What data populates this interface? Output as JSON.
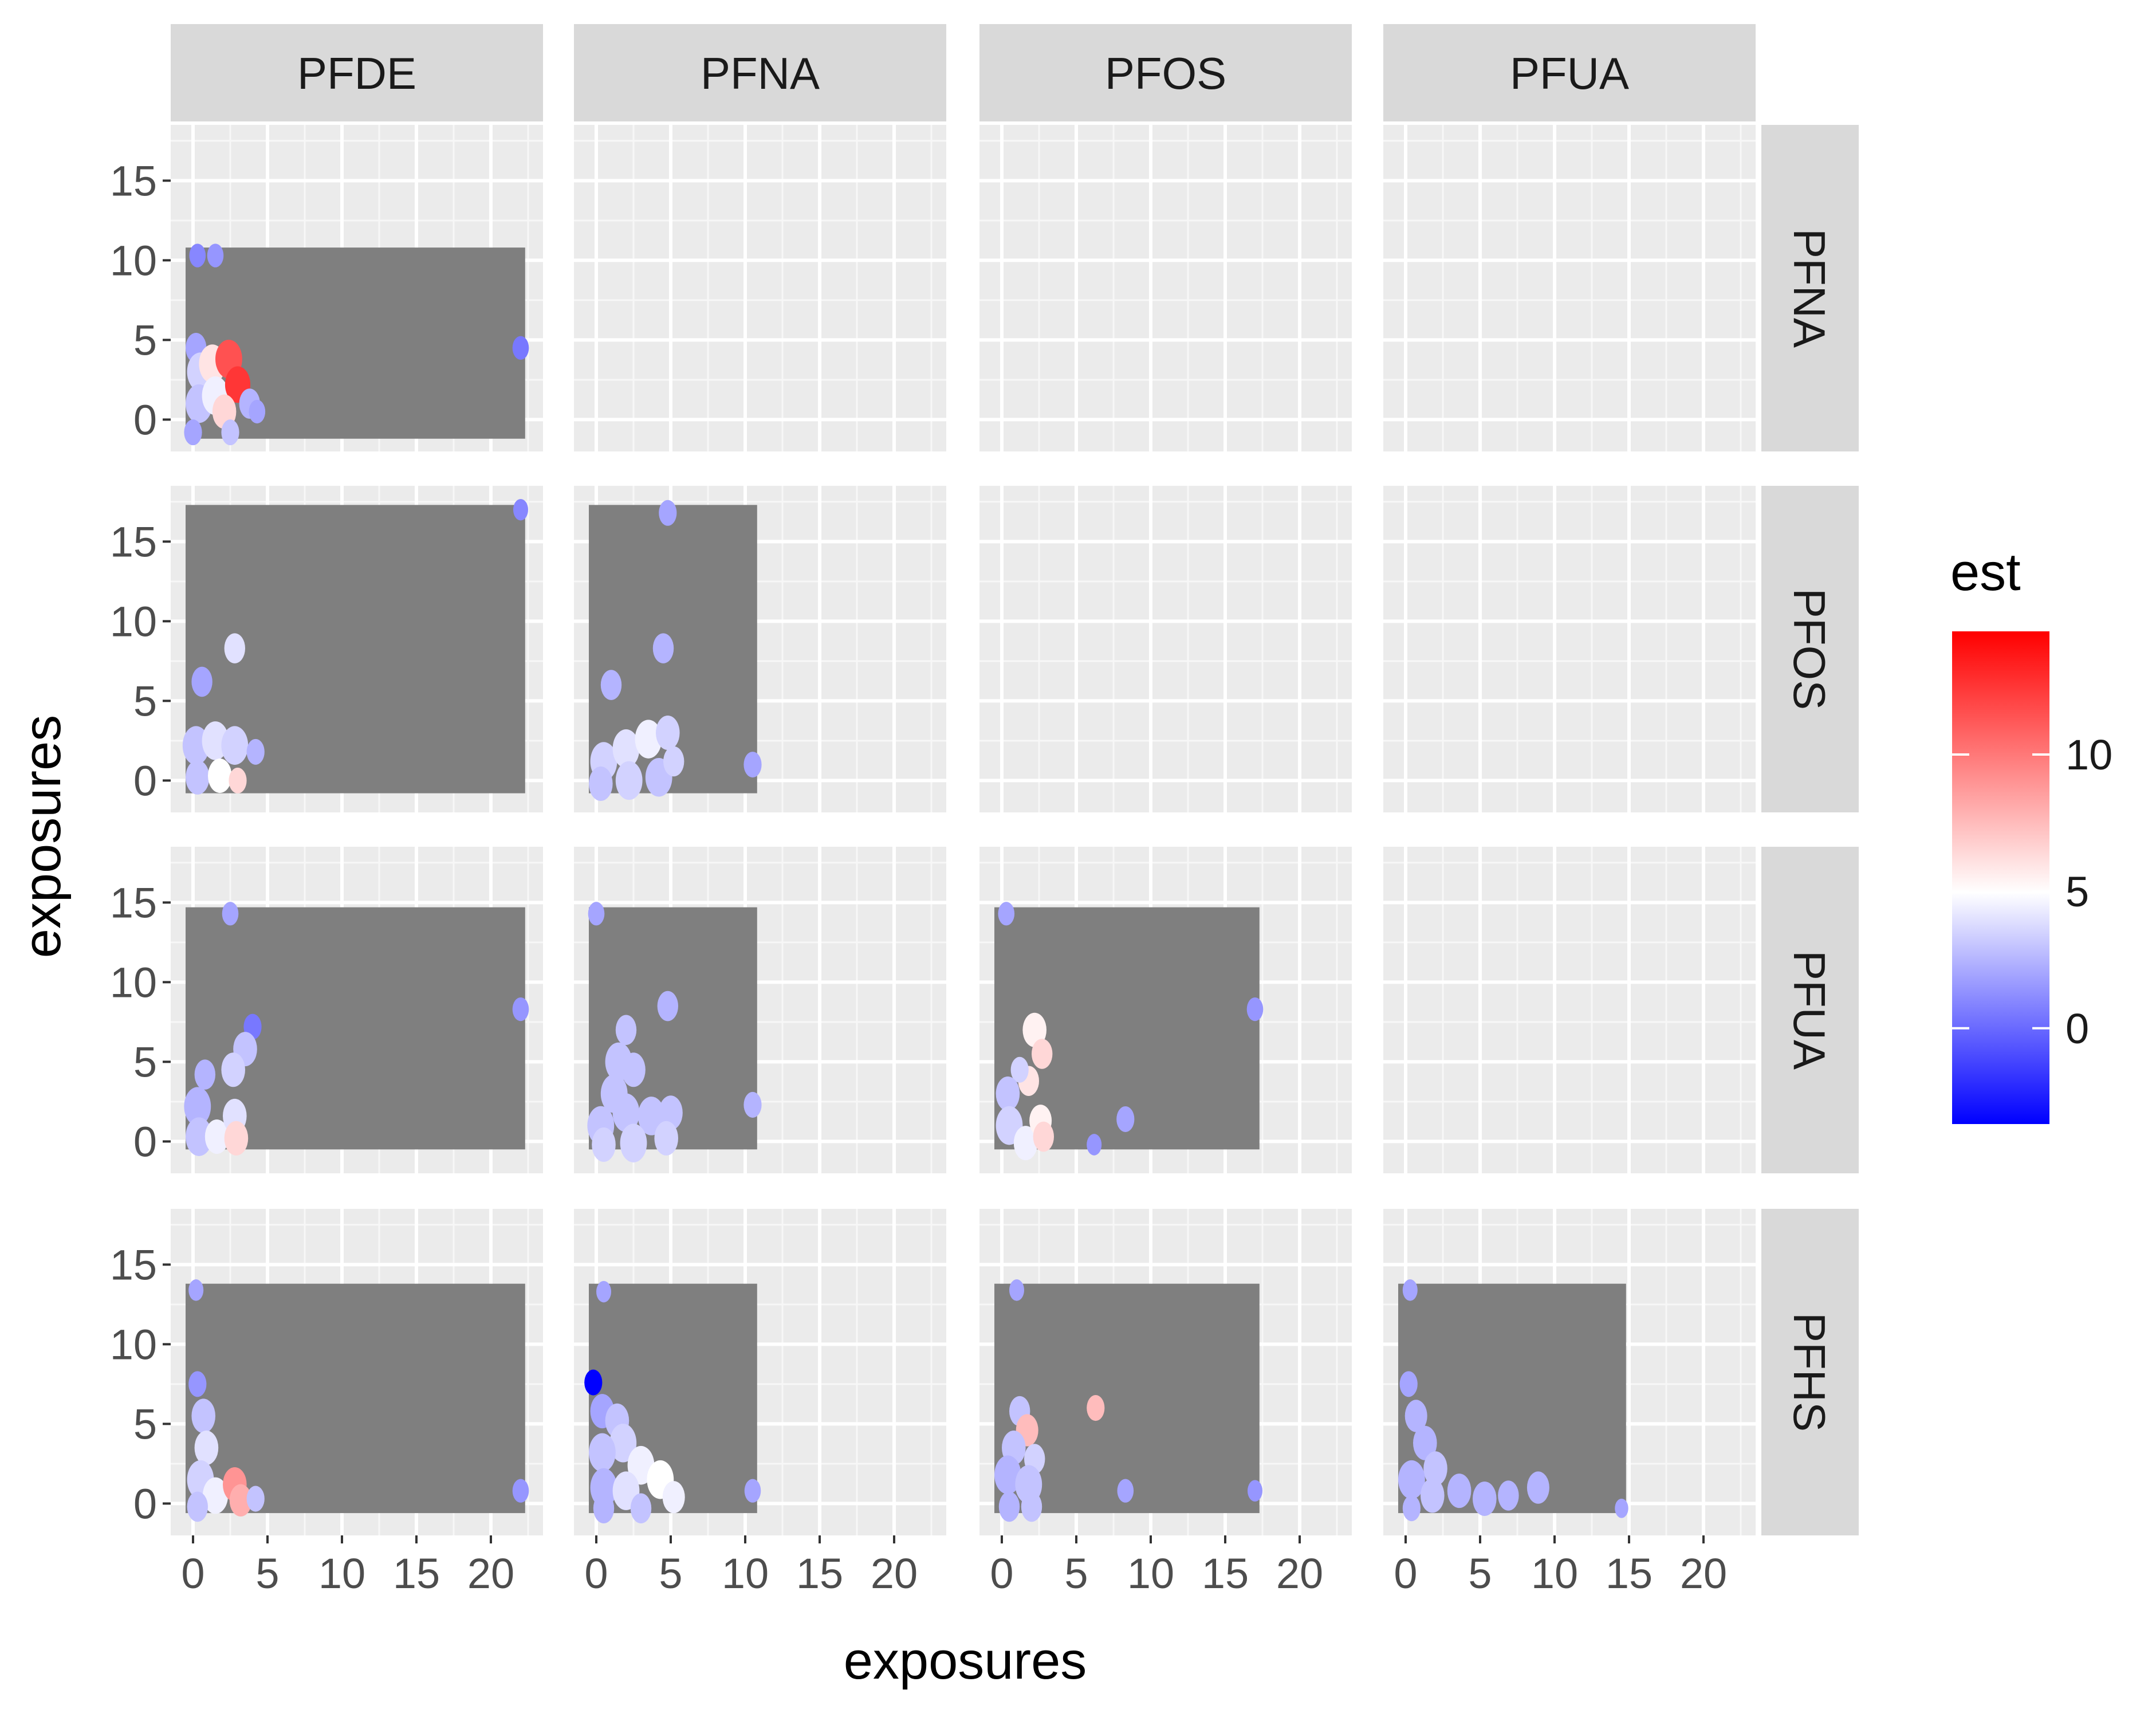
{
  "chart_data": {
    "type": "heatmap",
    "title": "",
    "xlabel": "exposures",
    "ylabel": "exposures",
    "xlim": [
      -1.5,
      23.5
    ],
    "ylim": [
      -2,
      18.5
    ],
    "x_ticks": [
      0,
      5,
      10,
      15,
      20
    ],
    "y_ticks": [
      0,
      5,
      10,
      15
    ],
    "column_labels": [
      "PFDE",
      "PFNA",
      "PFOS",
      "PFUA"
    ],
    "row_labels": [
      "PFNA",
      "PFOS",
      "PFUA",
      "PFHS"
    ],
    "legend": {
      "title": "est",
      "placement": "right",
      "min": -3.5,
      "max": 14.5,
      "ticks": [
        0,
        5,
        10
      ],
      "colors": {
        "low": "#0000ff",
        "mid": "#ffffff",
        "high": "#ff0000"
      },
      "midpoint": 5
    },
    "panel_background": "#ebebeb",
    "na_fill": "#7f7f7f",
    "strip_fill": "#d9d9d9",
    "panels": [
      {
        "col": "PFDE",
        "row": "PFNA",
        "grey_region": {
          "x": [
            -0.5,
            22.3
          ],
          "y": [
            -1.2,
            10.8
          ]
        },
        "patches": [
          {
            "x": 0.3,
            "y": 10.3,
            "r": 0.55,
            "est": 1.0
          },
          {
            "x": 1.5,
            "y": 10.3,
            "r": 0.55,
            "est": 1.5
          },
          {
            "x": 0.2,
            "y": 4.5,
            "r": 0.7,
            "est": 2.0
          },
          {
            "x": 0.5,
            "y": 3.0,
            "r": 0.9,
            "est": 3.5
          },
          {
            "x": 0.4,
            "y": 1.0,
            "r": 0.9,
            "est": 3.0
          },
          {
            "x": 0.0,
            "y": -0.8,
            "r": 0.6,
            "est": 2.0
          },
          {
            "x": 1.3,
            "y": 3.5,
            "r": 0.9,
            "est": 6.0
          },
          {
            "x": 1.5,
            "y": 1.5,
            "r": 0.9,
            "est": 4.5
          },
          {
            "x": 2.4,
            "y": 3.8,
            "r": 0.9,
            "est": 11.5
          },
          {
            "x": 3.0,
            "y": 2.2,
            "r": 0.85,
            "est": 12.5
          },
          {
            "x": 2.1,
            "y": 0.5,
            "r": 0.8,
            "est": 6.5
          },
          {
            "x": 3.8,
            "y": 1.0,
            "r": 0.7,
            "est": 2.5
          },
          {
            "x": 2.5,
            "y": -0.8,
            "r": 0.6,
            "est": 3.0
          },
          {
            "x": 4.3,
            "y": 0.5,
            "r": 0.55,
            "est": 2.0
          },
          {
            "x": 22.0,
            "y": 4.5,
            "r": 0.55,
            "est": 0.5
          }
        ]
      },
      {
        "col": "PFDE",
        "row": "PFOS",
        "grey_region": {
          "x": [
            -0.5,
            22.3
          ],
          "y": [
            -0.8,
            17.3
          ]
        },
        "patches": [
          {
            "x": 22.0,
            "y": 17.0,
            "r": 0.5,
            "est": 1.0
          },
          {
            "x": 2.8,
            "y": 8.3,
            "r": 0.7,
            "est": 4.0
          },
          {
            "x": 0.6,
            "y": 6.2,
            "r": 0.7,
            "est": 2.0
          },
          {
            "x": 0.2,
            "y": 2.2,
            "r": 0.9,
            "est": 3.0
          },
          {
            "x": 0.3,
            "y": 0.2,
            "r": 0.8,
            "est": 3.0
          },
          {
            "x": 1.5,
            "y": 2.5,
            "r": 0.9,
            "est": 4.0
          },
          {
            "x": 2.8,
            "y": 2.2,
            "r": 0.9,
            "est": 3.5
          },
          {
            "x": 1.8,
            "y": 0.3,
            "r": 0.8,
            "est": 5.0
          },
          {
            "x": 3.0,
            "y": 0.0,
            "r": 0.6,
            "est": 6.5
          },
          {
            "x": 4.2,
            "y": 1.8,
            "r": 0.6,
            "est": 2.5
          }
        ]
      },
      {
        "col": "PFNA",
        "row": "PFOS",
        "grey_region": {
          "x": [
            -0.5,
            10.8
          ],
          "y": [
            -0.8,
            17.3
          ]
        },
        "patches": [
          {
            "x": 4.8,
            "y": 16.8,
            "r": 0.6,
            "est": 2.0
          },
          {
            "x": 4.5,
            "y": 8.3,
            "r": 0.7,
            "est": 2.5
          },
          {
            "x": 1.0,
            "y": 6.0,
            "r": 0.7,
            "est": 2.5
          },
          {
            "x": 10.5,
            "y": 1.0,
            "r": 0.6,
            "est": 2.0
          },
          {
            "x": 0.5,
            "y": 1.2,
            "r": 0.9,
            "est": 3.5
          },
          {
            "x": 2.0,
            "y": 2.0,
            "r": 0.9,
            "est": 4.0
          },
          {
            "x": 3.5,
            "y": 2.6,
            "r": 0.9,
            "est": 4.5
          },
          {
            "x": 4.8,
            "y": 3.0,
            "r": 0.8,
            "est": 3.5
          },
          {
            "x": 0.3,
            "y": -0.2,
            "r": 0.8,
            "est": 3.0
          },
          {
            "x": 2.2,
            "y": 0.0,
            "r": 0.9,
            "est": 3.5
          },
          {
            "x": 4.2,
            "y": 0.2,
            "r": 0.9,
            "est": 3.0
          },
          {
            "x": 5.2,
            "y": 1.2,
            "r": 0.7,
            "est": 3.5
          }
        ]
      },
      {
        "col": "PFDE",
        "row": "PFUA",
        "grey_region": {
          "x": [
            -0.5,
            22.3
          ],
          "y": [
            -0.5,
            14.7
          ]
        },
        "patches": [
          {
            "x": 2.5,
            "y": 14.3,
            "r": 0.55,
            "est": 2.0
          },
          {
            "x": 22.0,
            "y": 8.3,
            "r": 0.55,
            "est": 1.5
          },
          {
            "x": 4.0,
            "y": 7.2,
            "r": 0.6,
            "est": 0.5
          },
          {
            "x": 3.5,
            "y": 5.8,
            "r": 0.8,
            "est": 3.0
          },
          {
            "x": 2.7,
            "y": 4.5,
            "r": 0.8,
            "est": 3.5
          },
          {
            "x": 0.8,
            "y": 4.2,
            "r": 0.7,
            "est": 2.5
          },
          {
            "x": 0.3,
            "y": 2.2,
            "r": 0.9,
            "est": 2.5
          },
          {
            "x": 0.4,
            "y": 0.3,
            "r": 0.9,
            "est": 3.0
          },
          {
            "x": 1.6,
            "y": 0.3,
            "r": 0.8,
            "est": 4.5
          },
          {
            "x": 2.8,
            "y": 1.6,
            "r": 0.8,
            "est": 4.0
          },
          {
            "x": 2.9,
            "y": 0.2,
            "r": 0.8,
            "est": 6.5
          }
        ]
      },
      {
        "col": "PFNA",
        "row": "PFUA",
        "grey_region": {
          "x": [
            -0.5,
            10.8
          ],
          "y": [
            -0.5,
            14.7
          ]
        },
        "patches": [
          {
            "x": 0.0,
            "y": 14.3,
            "r": 0.55,
            "est": 2.0
          },
          {
            "x": 4.8,
            "y": 8.5,
            "r": 0.7,
            "est": 2.5
          },
          {
            "x": 2.0,
            "y": 7.0,
            "r": 0.7,
            "est": 3.0
          },
          {
            "x": 1.5,
            "y": 5.0,
            "r": 0.9,
            "est": 3.0
          },
          {
            "x": 2.5,
            "y": 4.5,
            "r": 0.8,
            "est": 3.0
          },
          {
            "x": 1.2,
            "y": 3.0,
            "r": 0.9,
            "est": 3.0
          },
          {
            "x": 10.5,
            "y": 2.3,
            "r": 0.6,
            "est": 2.5
          },
          {
            "x": 0.3,
            "y": 1.0,
            "r": 0.9,
            "est": 3.0
          },
          {
            "x": 2.0,
            "y": 1.8,
            "r": 0.9,
            "est": 3.0
          },
          {
            "x": 3.7,
            "y": 1.6,
            "r": 0.9,
            "est": 3.0
          },
          {
            "x": 5.0,
            "y": 1.8,
            "r": 0.8,
            "est": 3.0
          },
          {
            "x": 0.5,
            "y": -0.2,
            "r": 0.8,
            "est": 3.5
          },
          {
            "x": 2.5,
            "y": -0.1,
            "r": 0.9,
            "est": 3.5
          },
          {
            "x": 4.7,
            "y": 0.2,
            "r": 0.8,
            "est": 3.5
          }
        ]
      },
      {
        "col": "PFOS",
        "row": "PFUA",
        "grey_region": {
          "x": [
            -0.5,
            17.3
          ],
          "y": [
            -0.5,
            14.7
          ]
        },
        "patches": [
          {
            "x": 0.3,
            "y": 14.3,
            "r": 0.55,
            "est": 2.0
          },
          {
            "x": 17.0,
            "y": 8.3,
            "r": 0.55,
            "est": 1.5
          },
          {
            "x": 2.2,
            "y": 7.0,
            "r": 0.8,
            "est": 5.5
          },
          {
            "x": 2.7,
            "y": 5.5,
            "r": 0.7,
            "est": 6.5
          },
          {
            "x": 1.8,
            "y": 3.8,
            "r": 0.7,
            "est": 6.0
          },
          {
            "x": 1.2,
            "y": 4.5,
            "r": 0.6,
            "est": 3.5
          },
          {
            "x": 0.4,
            "y": 3.0,
            "r": 0.8,
            "est": 3.0
          },
          {
            "x": 0.5,
            "y": 1.0,
            "r": 0.9,
            "est": 3.5
          },
          {
            "x": 1.6,
            "y": -0.1,
            "r": 0.8,
            "est": 4.5
          },
          {
            "x": 2.6,
            "y": 1.3,
            "r": 0.75,
            "est": 5.5
          },
          {
            "x": 2.8,
            "y": 0.3,
            "r": 0.7,
            "est": 6.5
          },
          {
            "x": 8.3,
            "y": 1.4,
            "r": 0.6,
            "est": 2.0
          },
          {
            "x": 6.2,
            "y": -0.2,
            "r": 0.5,
            "est": 1.5
          }
        ]
      },
      {
        "col": "PFDE",
        "row": "PFHS",
        "grey_region": {
          "x": [
            -0.5,
            22.3
          ],
          "y": [
            -0.6,
            13.8
          ]
        },
        "patches": [
          {
            "x": 0.2,
            "y": 13.4,
            "r": 0.5,
            "est": 2.0
          },
          {
            "x": 22.0,
            "y": 0.8,
            "r": 0.55,
            "est": 1.5
          },
          {
            "x": 0.3,
            "y": 7.5,
            "r": 0.6,
            "est": 1.5
          },
          {
            "x": 0.7,
            "y": 5.5,
            "r": 0.8,
            "est": 3.0
          },
          {
            "x": 0.9,
            "y": 3.5,
            "r": 0.8,
            "est": 4.0
          },
          {
            "x": 0.5,
            "y": 1.5,
            "r": 0.9,
            "est": 3.5
          },
          {
            "x": 1.5,
            "y": 0.5,
            "r": 0.85,
            "est": 4.5
          },
          {
            "x": 0.3,
            "y": -0.2,
            "r": 0.7,
            "est": 3.0
          },
          {
            "x": 2.8,
            "y": 1.2,
            "r": 0.8,
            "est": 9.0
          },
          {
            "x": 3.2,
            "y": 0.2,
            "r": 0.75,
            "est": 8.0
          },
          {
            "x": 4.2,
            "y": 0.3,
            "r": 0.6,
            "est": 3.0
          }
        ]
      },
      {
        "col": "PFNA",
        "row": "PFHS",
        "grey_region": {
          "x": [
            -0.5,
            10.8
          ],
          "y": [
            -0.6,
            13.8
          ]
        },
        "patches": [
          {
            "x": 0.5,
            "y": 13.3,
            "r": 0.5,
            "est": 2.0
          },
          {
            "x": 10.5,
            "y": 0.8,
            "r": 0.55,
            "est": 2.0
          },
          {
            "x": -0.2,
            "y": 7.6,
            "r": 0.6,
            "est": -3.5
          },
          {
            "x": 0.4,
            "y": 5.8,
            "r": 0.8,
            "est": 2.0
          },
          {
            "x": 1.4,
            "y": 5.2,
            "r": 0.8,
            "est": 3.0
          },
          {
            "x": 1.8,
            "y": 3.8,
            "r": 0.9,
            "est": 3.5
          },
          {
            "x": 0.4,
            "y": 3.2,
            "r": 0.9,
            "est": 3.0
          },
          {
            "x": 3.0,
            "y": 2.4,
            "r": 0.9,
            "est": 4.5
          },
          {
            "x": 4.3,
            "y": 1.5,
            "r": 0.9,
            "est": 5.0
          },
          {
            "x": 0.5,
            "y": 1.0,
            "r": 0.9,
            "est": 2.5
          },
          {
            "x": 2.0,
            "y": 0.8,
            "r": 0.9,
            "est": 4.0
          },
          {
            "x": 5.2,
            "y": 0.4,
            "r": 0.75,
            "est": 4.5
          },
          {
            "x": 0.5,
            "y": -0.3,
            "r": 0.7,
            "est": 2.5
          },
          {
            "x": 3.0,
            "y": -0.3,
            "r": 0.7,
            "est": 3.0
          }
        ]
      },
      {
        "col": "PFOS",
        "row": "PFHS",
        "grey_region": {
          "x": [
            -0.5,
            17.3
          ],
          "y": [
            -0.6,
            13.8
          ]
        },
        "patches": [
          {
            "x": 1.0,
            "y": 13.4,
            "r": 0.5,
            "est": 2.0
          },
          {
            "x": 17.0,
            "y": 0.8,
            "r": 0.5,
            "est": 1.5
          },
          {
            "x": 6.3,
            "y": 6.0,
            "r": 0.6,
            "est": 7.5
          },
          {
            "x": 1.2,
            "y": 5.8,
            "r": 0.7,
            "est": 3.0
          },
          {
            "x": 1.7,
            "y": 4.6,
            "r": 0.75,
            "est": 7.5
          },
          {
            "x": 0.8,
            "y": 3.5,
            "r": 0.8,
            "est": 3.0
          },
          {
            "x": 2.2,
            "y": 2.8,
            "r": 0.7,
            "est": 3.5
          },
          {
            "x": 0.4,
            "y": 1.8,
            "r": 0.9,
            "est": 2.5
          },
          {
            "x": 1.8,
            "y": 1.2,
            "r": 0.9,
            "est": 3.0
          },
          {
            "x": 0.5,
            "y": -0.2,
            "r": 0.7,
            "est": 2.5
          },
          {
            "x": 2.0,
            "y": -0.2,
            "r": 0.7,
            "est": 3.0
          },
          {
            "x": 8.3,
            "y": 0.8,
            "r": 0.55,
            "est": 2.0
          }
        ]
      },
      {
        "col": "PFUA",
        "row": "PFHS",
        "grey_region": {
          "x": [
            -0.5,
            14.8
          ],
          "y": [
            -0.6,
            13.8
          ]
        },
        "patches": [
          {
            "x": 0.3,
            "y": 13.4,
            "r": 0.5,
            "est": 2.0
          },
          {
            "x": 14.5,
            "y": -0.3,
            "r": 0.45,
            "est": 2.0
          },
          {
            "x": 0.2,
            "y": 7.5,
            "r": 0.6,
            "est": 2.0
          },
          {
            "x": 0.7,
            "y": 5.5,
            "r": 0.75,
            "est": 2.5
          },
          {
            "x": 1.3,
            "y": 3.8,
            "r": 0.8,
            "est": 2.5
          },
          {
            "x": 2.0,
            "y": 2.2,
            "r": 0.8,
            "est": 3.0
          },
          {
            "x": 0.4,
            "y": 1.5,
            "r": 0.9,
            "est": 2.5
          },
          {
            "x": 1.8,
            "y": 0.5,
            "r": 0.8,
            "est": 3.0
          },
          {
            "x": 3.6,
            "y": 0.8,
            "r": 0.8,
            "est": 2.5
          },
          {
            "x": 5.3,
            "y": 0.3,
            "r": 0.8,
            "est": 2.5
          },
          {
            "x": 6.9,
            "y": 0.5,
            "r": 0.7,
            "est": 2.5
          },
          {
            "x": 8.9,
            "y": 1.0,
            "r": 0.75,
            "est": 2.5
          },
          {
            "x": 0.4,
            "y": -0.3,
            "r": 0.6,
            "est": 2.5
          }
        ]
      }
    ]
  }
}
